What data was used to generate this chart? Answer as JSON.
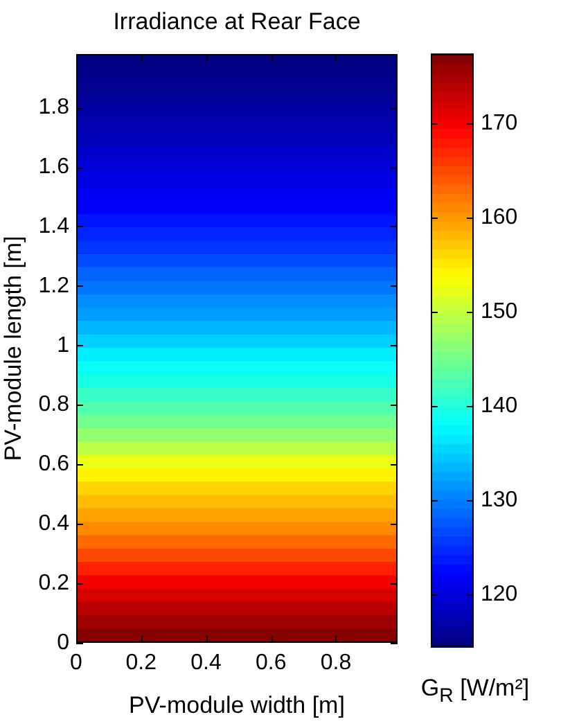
{
  "chart_data": {
    "type": "heatmap",
    "title": "Irradiance at Rear Face",
    "xlabel": "PV-module width [m]",
    "ylabel": "PV-module length [m]",
    "clabel": "G$_{R}$ [W/m²]",
    "cells": [
      [
        114.5
      ],
      [
        115
      ],
      [
        115.5
      ],
      [
        116
      ],
      [
        117
      ],
      [
        117.5
      ],
      [
        118
      ],
      [
        119
      ],
      [
        120
      ],
      [
        120.5
      ],
      [
        121.5
      ],
      [
        122
      ],
      [
        123.5
      ],
      [
        124.5
      ],
      [
        125.5
      ],
      [
        127
      ],
      [
        128.5
      ],
      [
        129.5
      ],
      [
        131
      ],
      [
        132
      ],
      [
        133.5
      ],
      [
        135
      ],
      [
        137
      ],
      [
        138.5
      ],
      [
        139.5
      ],
      [
        141.5
      ],
      [
        143
      ],
      [
        145
      ],
      [
        147
      ],
      [
        149.5
      ],
      [
        152.5
      ],
      [
        154.5
      ],
      [
        156.5
      ],
      [
        158
      ],
      [
        159.5
      ],
      [
        161
      ],
      [
        163
      ],
      [
        165
      ],
      [
        167.5
      ],
      [
        170
      ],
      [
        172
      ],
      [
        174
      ],
      [
        175.5
      ],
      [
        177
      ]
    ],
    "clim": [
      114.4,
      177.4
    ],
    "cticks": [
      120,
      130,
      140,
      150,
      160,
      170
    ],
    "xlim": [
      0,
      0.99
    ],
    "xticks": [
      0,
      0.2,
      0.4,
      0.6,
      0.8
    ],
    "ylim": [
      0,
      1.98
    ],
    "yticks": [
      0,
      0.2,
      0.4,
      0.6,
      0.8,
      1,
      1.2,
      1.4,
      1.6,
      1.8
    ]
  }
}
